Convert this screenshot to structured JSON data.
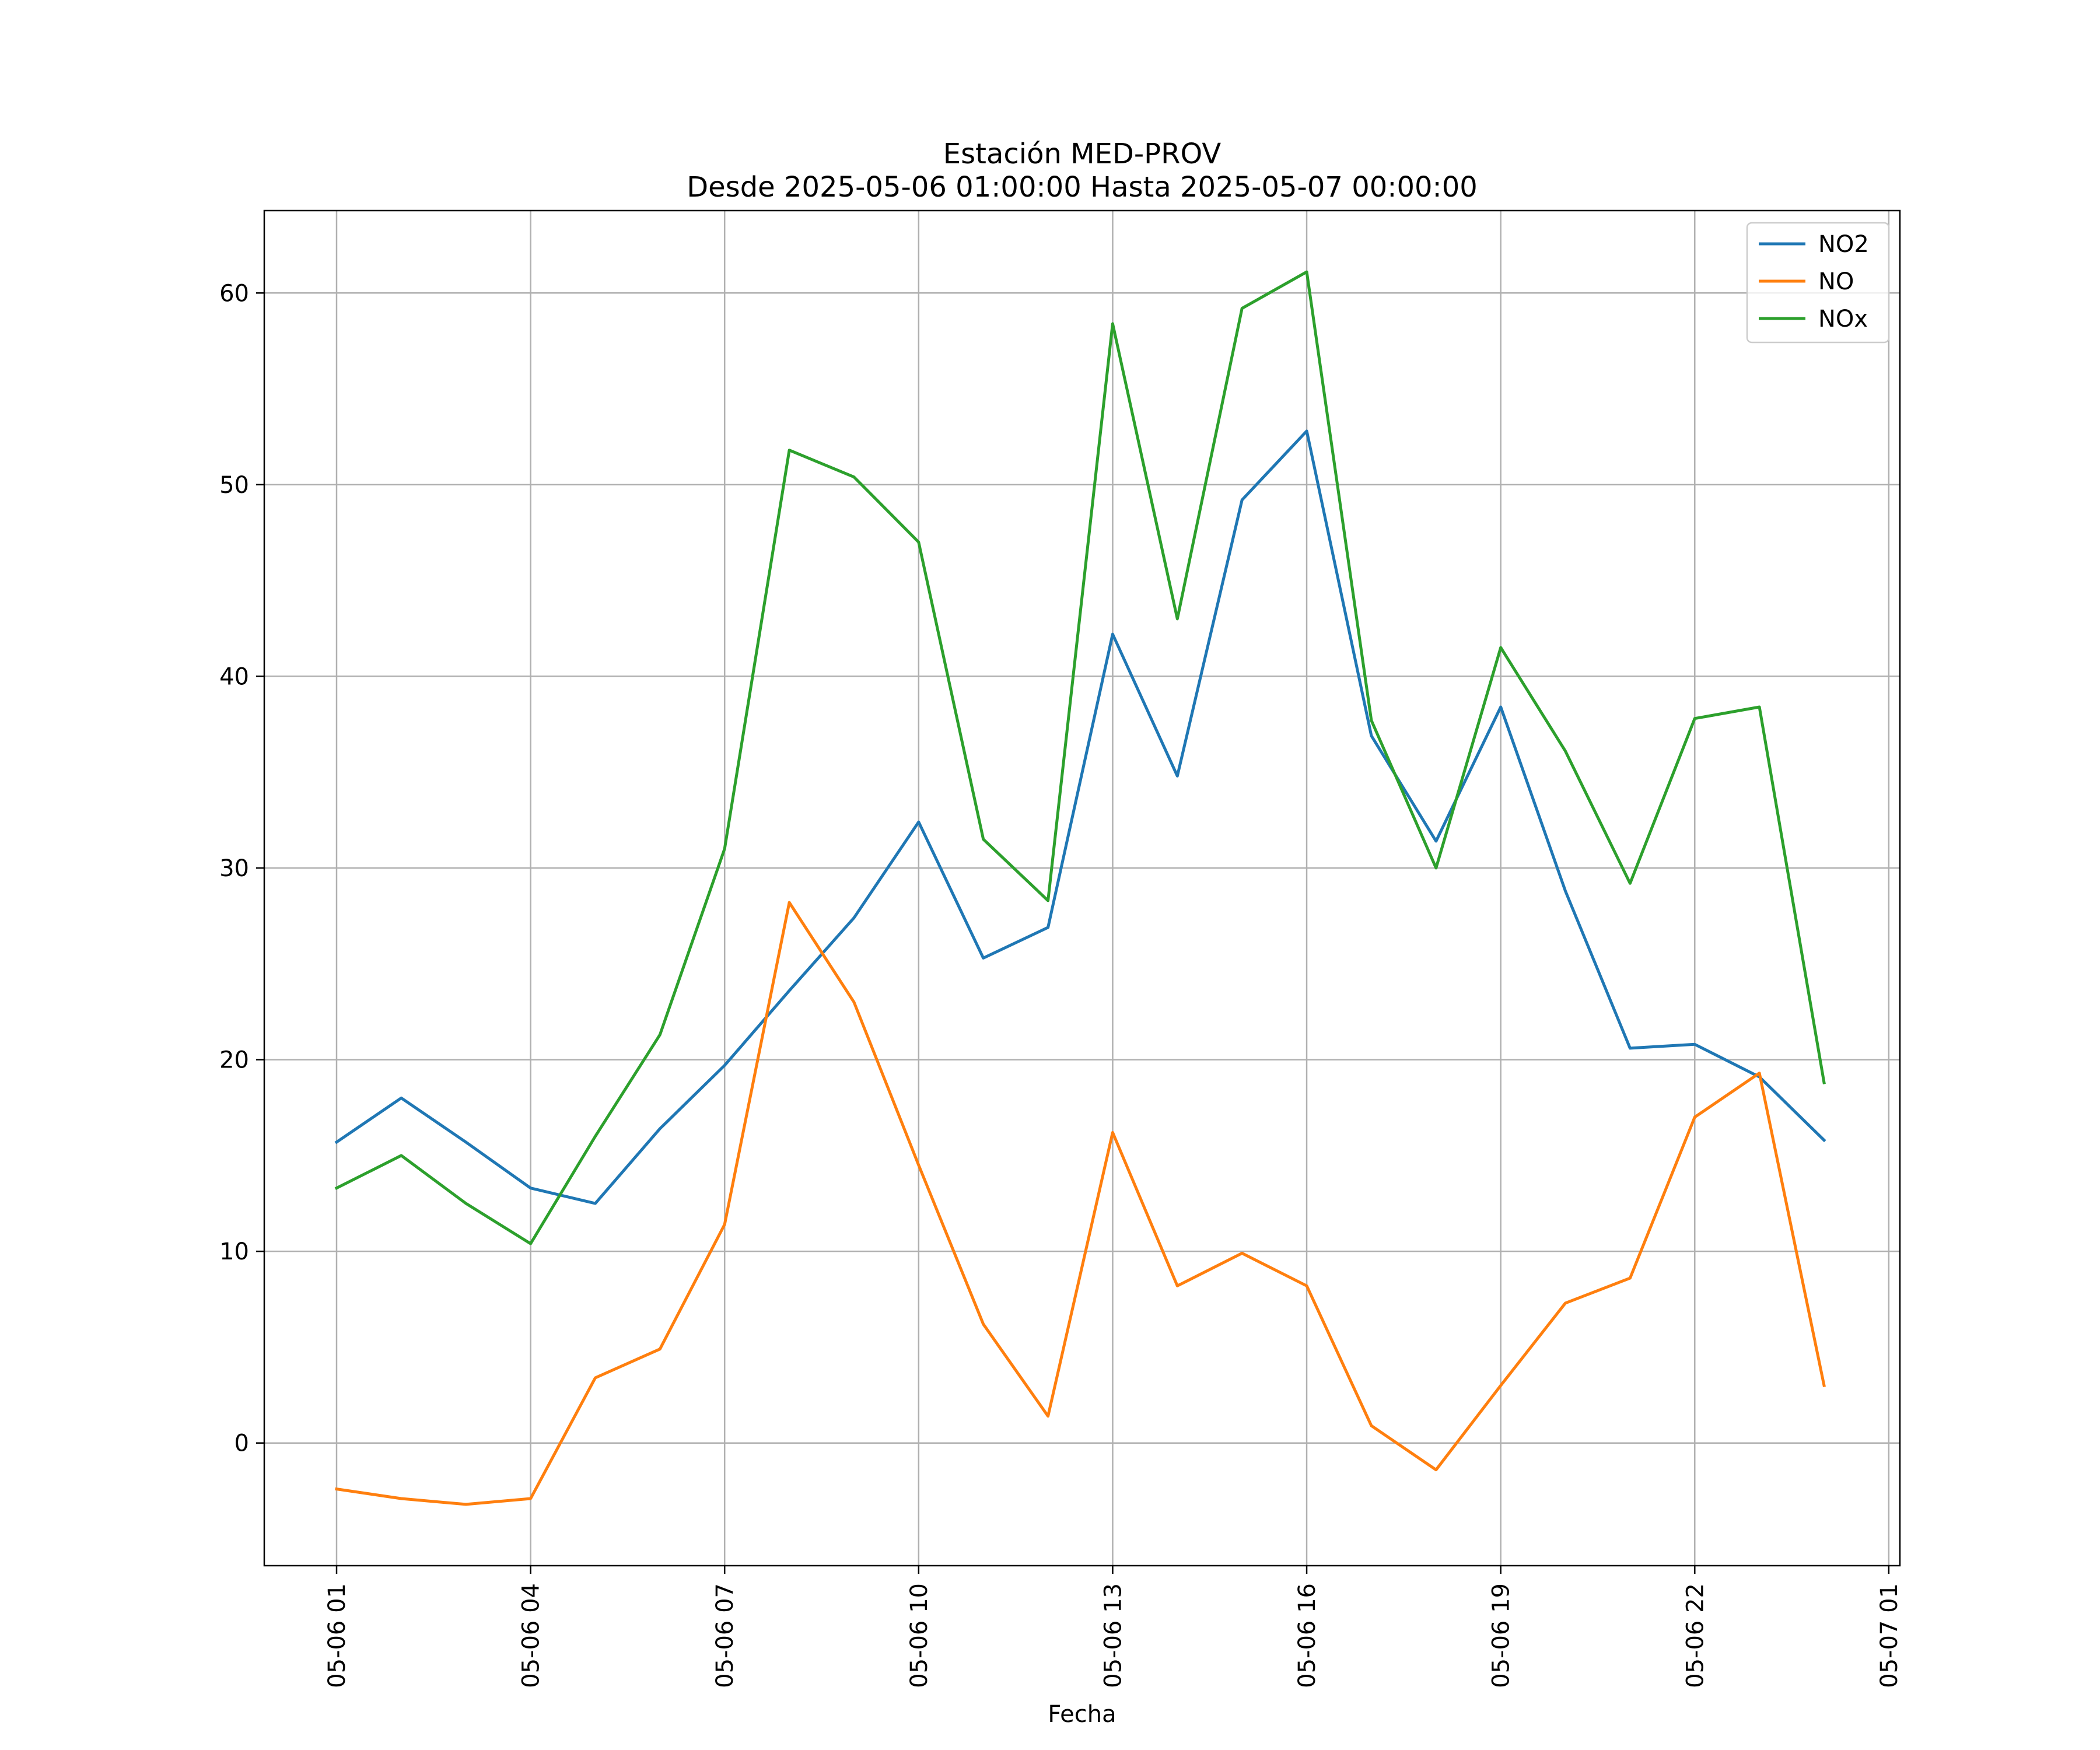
{
  "chart_data": {
    "type": "line",
    "title": "Estación MED-PROV",
    "subtitle": "Desde 2025-05-06 01:00:00 Hasta 2025-05-07 00:00:00",
    "xlabel": "Fecha",
    "ylabel": "",
    "x": [
      "05-06 01",
      "05-06 02",
      "05-06 03",
      "05-06 04",
      "05-06 05",
      "05-06 06",
      "05-06 07",
      "05-06 08",
      "05-06 09",
      "05-06 10",
      "05-06 11",
      "05-06 12",
      "05-06 13",
      "05-06 14",
      "05-06 15",
      "05-06 16",
      "05-06 17",
      "05-06 18",
      "05-06 19",
      "05-06 20",
      "05-06 21",
      "05-06 22",
      "05-06 23",
      "05-07 00"
    ],
    "x_ticks": [
      "05-06 01",
      "05-06 04",
      "05-06 07",
      "05-06 10",
      "05-06 13",
      "05-06 16",
      "05-06 19",
      "05-06 22",
      "05-07 01"
    ],
    "y_ticks": [
      0,
      10,
      20,
      30,
      40,
      50,
      60
    ],
    "ylim": [
      -6.4,
      64.3
    ],
    "grid": true,
    "legend_position": "top-right",
    "series": [
      {
        "name": "NO2",
        "color": "#1f77b4",
        "values": [
          15.7,
          18.0,
          15.7,
          13.3,
          12.5,
          16.4,
          19.7,
          23.6,
          27.4,
          32.4,
          25.3,
          26.9,
          42.2,
          34.8,
          49.2,
          52.8,
          36.9,
          31.4,
          38.4,
          28.8,
          20.6,
          20.8,
          19.1,
          15.8
        ]
      },
      {
        "name": "NO",
        "color": "#ff7f0e",
        "values": [
          -2.4,
          -2.9,
          -3.2,
          -2.9,
          3.4,
          4.9,
          11.4,
          28.2,
          23.0,
          14.5,
          6.2,
          1.4,
          16.2,
          8.2,
          9.9,
          8.2,
          0.9,
          -1.4,
          3.0,
          7.3,
          8.6,
          17.0,
          19.3,
          3.0
        ]
      },
      {
        "name": "NOx",
        "color": "#2ca02c",
        "values": [
          13.3,
          15.0,
          12.5,
          10.4,
          16.0,
          21.3,
          31.0,
          51.8,
          50.4,
          47.0,
          31.5,
          28.3,
          58.4,
          43.0,
          59.2,
          61.1,
          37.7,
          30.0,
          41.5,
          36.1,
          29.2,
          37.8,
          38.4,
          18.8
        ]
      }
    ]
  }
}
